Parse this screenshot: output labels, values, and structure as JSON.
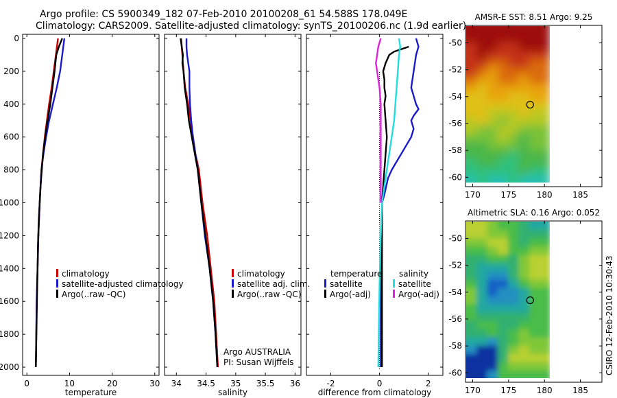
{
  "title_line1": "Argo profile: CS 5900349_182 07-Feb-2010 20100208_61 54.588S 178.049E",
  "title_line2": "Climatology: CARS2009. Satellite-adjusted climatology: synTS_20100206.nc (1.9d earlier)",
  "credit": "CSIRO 12-Feb-2010 10:30:43",
  "colors": {
    "red": "#cc0000",
    "blue": "#1a1acc",
    "black": "#000000",
    "cyan": "#22dddd",
    "magenta": "#dd22dd"
  },
  "chart_data": [
    {
      "type": "line",
      "xlabel": "temperature",
      "xlim": [
        -1,
        31
      ],
      "ylim": [
        0,
        2050
      ],
      "xticks": [
        0,
        10,
        20,
        30
      ],
      "yticks": [
        0,
        200,
        400,
        600,
        800,
        1000,
        1200,
        1400,
        1600,
        1800,
        2000
      ],
      "legend": [
        "climatology",
        "satellite-adjusted climatology",
        "Argo(..raw -QC)"
      ],
      "series": [
        {
          "name": "climatology",
          "color": "red",
          "points": [
            [
              7.3,
              0
            ],
            [
              6.8,
              100
            ],
            [
              6.3,
              200
            ],
            [
              5.8,
              300
            ],
            [
              5.2,
              400
            ],
            [
              4.7,
              500
            ],
            [
              4.2,
              600
            ],
            [
              3.8,
              700
            ],
            [
              3.4,
              800
            ],
            [
              3.0,
              1000
            ],
            [
              2.7,
              1200
            ],
            [
              2.5,
              1400
            ],
            [
              2.3,
              1600
            ],
            [
              2.2,
              1800
            ],
            [
              2.1,
              2000
            ]
          ]
        },
        {
          "name": "satellite-adjusted climatology",
          "color": "blue",
          "points": [
            [
              8.8,
              0
            ],
            [
              8.3,
              100
            ],
            [
              7.8,
              200
            ],
            [
              7.0,
              300
            ],
            [
              6.1,
              400
            ],
            [
              5.2,
              500
            ],
            [
              4.5,
              600
            ],
            [
              3.9,
              700
            ],
            [
              3.4,
              800
            ],
            [
              3.0,
              1000
            ],
            [
              2.7,
              1200
            ],
            [
              2.5,
              1400
            ],
            [
              2.3,
              1600
            ],
            [
              2.2,
              1800
            ],
            [
              2.1,
              2000
            ]
          ]
        },
        {
          "name": "Argo(..raw -QC)",
          "color": "black",
          "points": [
            [
              8.3,
              0
            ],
            [
              7.5,
              50
            ],
            [
              6.9,
              100
            ],
            [
              6.5,
              200
            ],
            [
              6.0,
              300
            ],
            [
              5.5,
              400
            ],
            [
              5.0,
              480
            ],
            [
              4.5,
              560
            ],
            [
              4.2,
              620
            ],
            [
              3.8,
              700
            ],
            [
              3.5,
              800
            ],
            [
              3.2,
              900
            ],
            [
              3.0,
              1000
            ],
            [
              2.8,
              1100
            ],
            [
              2.6,
              1250
            ],
            [
              2.5,
              1400
            ],
            [
              2.4,
              1550
            ],
            [
              2.3,
              1700
            ],
            [
              2.2,
              1850
            ],
            [
              2.1,
              2000
            ]
          ]
        }
      ]
    },
    {
      "type": "line",
      "xlabel": "salinity",
      "xlim": [
        33.8,
        36.1
      ],
      "ylim": [
        0,
        2050
      ],
      "xticks": [
        34,
        34.5,
        35,
        35.5,
        36
      ],
      "yticks": [
        0,
        200,
        400,
        600,
        800,
        1000,
        1200,
        1400,
        1600,
        1800,
        2000
      ],
      "legend": [
        "climatology",
        "satellite adj. clim.",
        "Argo(..raw -QC)"
      ],
      "annotations": [
        "Argo AUSTRALIA",
        "PI: Susan Wijffels"
      ],
      "series": [
        {
          "name": "climatology",
          "color": "red",
          "points": [
            [
              34.08,
              0
            ],
            [
              34.1,
              100
            ],
            [
              34.12,
              200
            ],
            [
              34.15,
              300
            ],
            [
              34.2,
              400
            ],
            [
              34.24,
              500
            ],
            [
              34.28,
              600
            ],
            [
              34.32,
              700
            ],
            [
              34.38,
              800
            ],
            [
              34.44,
              1000
            ],
            [
              34.52,
              1200
            ],
            [
              34.58,
              1400
            ],
            [
              34.64,
              1600
            ],
            [
              34.67,
              1800
            ],
            [
              34.7,
              2000
            ]
          ]
        },
        {
          "name": "satellite adj. clim.",
          "color": "blue",
          "points": [
            [
              34.17,
              0
            ],
            [
              34.17,
              50
            ],
            [
              34.18,
              100
            ],
            [
              34.2,
              150
            ],
            [
              34.22,
              200
            ],
            [
              34.22,
              300
            ],
            [
              34.23,
              400
            ],
            [
              34.25,
              500
            ],
            [
              34.28,
              600
            ],
            [
              34.32,
              700
            ],
            [
              34.36,
              800
            ],
            [
              34.42,
              1000
            ],
            [
              34.48,
              1200
            ],
            [
              34.56,
              1400
            ],
            [
              34.62,
              1600
            ],
            [
              34.66,
              1800
            ],
            [
              34.69,
              2000
            ]
          ]
        },
        {
          "name": "Argo(..raw -QC)",
          "color": "black",
          "points": [
            [
              34.07,
              0
            ],
            [
              34.09,
              50
            ],
            [
              34.11,
              100
            ],
            [
              34.1,
              150
            ],
            [
              34.12,
              200
            ],
            [
              34.14,
              300
            ],
            [
              34.18,
              400
            ],
            [
              34.21,
              500
            ],
            [
              34.26,
              600
            ],
            [
              34.31,
              700
            ],
            [
              34.36,
              800
            ],
            [
              34.42,
              1000
            ],
            [
              34.49,
              1200
            ],
            [
              34.56,
              1400
            ],
            [
              34.62,
              1600
            ],
            [
              34.66,
              1800
            ],
            [
              34.69,
              2000
            ]
          ]
        }
      ]
    },
    {
      "type": "line",
      "xlabel": "difference from climatology",
      "xlim": [
        -3,
        2.6
      ],
      "ylim": [
        0,
        2050
      ],
      "xticks": [
        -2,
        0,
        2
      ],
      "yticks": [
        0,
        200,
        400,
        600,
        800,
        1000,
        1200,
        1400,
        1600,
        1800,
        2000
      ],
      "legend_left_title": "temperature",
      "legend_left": [
        "satellite",
        "Argo(-adj)"
      ],
      "legend_right_title": "salinity",
      "legend_right": [
        "satellite",
        "Argo(-adj)"
      ],
      "series": [
        {
          "name": "temperature satellite",
          "color": "blue",
          "points": [
            [
              1.5,
              0
            ],
            [
              1.6,
              50
            ],
            [
              1.5,
              100
            ],
            [
              1.4,
              200
            ],
            [
              1.3,
              300
            ],
            [
              1.4,
              350
            ],
            [
              1.5,
              400
            ],
            [
              1.6,
              430
            ],
            [
              1.4,
              470
            ],
            [
              1.3,
              500
            ],
            [
              1.4,
              550
            ],
            [
              1.3,
              600
            ],
            [
              1.1,
              650
            ],
            [
              0.9,
              700
            ],
            [
              0.7,
              750
            ],
            [
              0.5,
              800
            ],
            [
              0.35,
              850
            ],
            [
              0.2,
              950
            ],
            [
              0.1,
              1000
            ],
            [
              0.1,
              1200
            ],
            [
              0.05,
              1500
            ],
            [
              0.05,
              2000
            ]
          ]
        },
        {
          "name": "temperature Argo(-adj)",
          "color": "black",
          "points": [
            [
              1.2,
              50
            ],
            [
              0.6,
              80
            ],
            [
              0.4,
              100
            ],
            [
              0.25,
              150
            ],
            [
              0.15,
              200
            ],
            [
              0.2,
              250
            ],
            [
              0.2,
              300
            ],
            [
              0.25,
              350
            ],
            [
              0.2,
              400
            ],
            [
              0.25,
              500
            ],
            [
              0.3,
              600
            ],
            [
              0.25,
              700
            ],
            [
              0.2,
              800
            ],
            [
              0.15,
              900
            ],
            [
              0.1,
              1000
            ],
            [
              0.1,
              1200
            ],
            [
              0.1,
              1500
            ],
            [
              0.1,
              1800
            ],
            [
              0.1,
              2000
            ]
          ]
        },
        {
          "name": "salinity satellite",
          "color": "cyan",
          "points": [
            [
              0.8,
              0
            ],
            [
              0.85,
              50
            ],
            [
              0.8,
              100
            ],
            [
              0.75,
              200
            ],
            [
              0.7,
              300
            ],
            [
              0.65,
              400
            ],
            [
              0.6,
              500
            ],
            [
              0.5,
              600
            ],
            [
              0.4,
              700
            ],
            [
              0.3,
              800
            ],
            [
              0.2,
              900
            ],
            [
              0.1,
              1000
            ],
            [
              0.05,
              1200
            ],
            [
              0.0,
              1500
            ],
            [
              -0.05,
              2000
            ]
          ]
        },
        {
          "name": "salinity Argo(-adj)",
          "color": "magenta",
          "points": [
            [
              0.05,
              0
            ],
            [
              -0.05,
              50
            ],
            [
              -0.1,
              100
            ],
            [
              -0.15,
              150
            ],
            [
              -0.1,
              200
            ],
            [
              -0.05,
              250
            ],
            [
              0.0,
              300
            ],
            [
              0.05,
              400
            ],
            [
              0.05,
              500
            ],
            [
              0.05,
              600
            ],
            [
              0.05,
              700
            ],
            [
              0.05,
              800
            ],
            [
              0.05,
              900
            ],
            [
              0.05,
              1000
            ]
          ]
        }
      ]
    },
    {
      "type": "heatmap",
      "title": "AMSR-E SST: 8.51 Argo: 9.25",
      "xlim": [
        169,
        188
      ],
      "ylim": [
        -60.7,
        -48.7
      ],
      "xticks": [
        170,
        175,
        180,
        185
      ],
      "yticks": [
        -50,
        -52,
        -54,
        -56,
        -58,
        -60
      ],
      "marker": {
        "lon": 178.0,
        "lat": -54.6
      }
    },
    {
      "type": "heatmap",
      "title": "Altimetric SLA: 0.16 Argo: 0.052",
      "xlim": [
        169,
        188
      ],
      "ylim": [
        -60.7,
        -48.7
      ],
      "xticks": [
        170,
        175,
        180,
        185
      ],
      "yticks": [
        -50,
        -52,
        -54,
        -56,
        -58,
        -60
      ],
      "marker": {
        "lon": 178.0,
        "lat": -54.6
      }
    }
  ]
}
